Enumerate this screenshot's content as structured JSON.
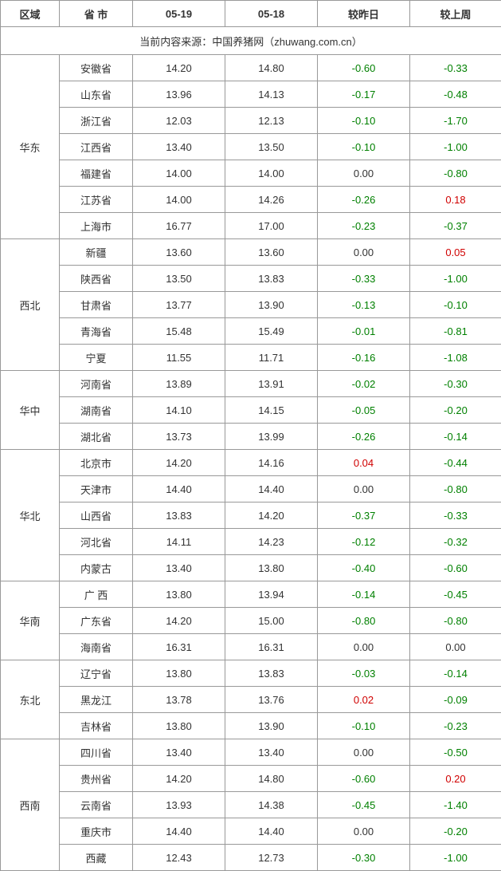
{
  "table": {
    "columns": [
      "区域",
      "省 市",
      "05-19",
      "05-18",
      "较昨日",
      "较上周"
    ],
    "source_line": "当前内容来源：中国养猪网（zhuwang.com.cn）",
    "colors": {
      "border": "#999999",
      "text": "#333333",
      "neg": "#008000",
      "pos": "#d00000",
      "bg": "#ffffff"
    },
    "groups": [
      {
        "region": "华东",
        "rows": [
          {
            "prov": "安徽省",
            "d1": "14.20",
            "d2": "14.80",
            "dd": "-0.60",
            "dw": "-0.33"
          },
          {
            "prov": "山东省",
            "d1": "13.96",
            "d2": "14.13",
            "dd": "-0.17",
            "dw": "-0.48"
          },
          {
            "prov": "浙江省",
            "d1": "12.03",
            "d2": "12.13",
            "dd": "-0.10",
            "dw": "-1.70"
          },
          {
            "prov": "江西省",
            "d1": "13.40",
            "d2": "13.50",
            "dd": "-0.10",
            "dw": "-1.00"
          },
          {
            "prov": "福建省",
            "d1": "14.00",
            "d2": "14.00",
            "dd": "0.00",
            "dw": "-0.80"
          },
          {
            "prov": "江苏省",
            "d1": "14.00",
            "d2": "14.26",
            "dd": "-0.26",
            "dw": "0.18"
          },
          {
            "prov": "上海市",
            "d1": "16.77",
            "d2": "17.00",
            "dd": "-0.23",
            "dw": "-0.37"
          }
        ]
      },
      {
        "region": "西北",
        "rows": [
          {
            "prov": "新疆",
            "d1": "13.60",
            "d2": "13.60",
            "dd": "0.00",
            "dw": "0.05"
          },
          {
            "prov": "陕西省",
            "d1": "13.50",
            "d2": "13.83",
            "dd": "-0.33",
            "dw": "-1.00"
          },
          {
            "prov": "甘肃省",
            "d1": "13.77",
            "d2": "13.90",
            "dd": "-0.13",
            "dw": "-0.10"
          },
          {
            "prov": "青海省",
            "d1": "15.48",
            "d2": "15.49",
            "dd": "-0.01",
            "dw": "-0.81"
          },
          {
            "prov": "宁夏",
            "d1": "11.55",
            "d2": "11.71",
            "dd": "-0.16",
            "dw": "-1.08"
          }
        ]
      },
      {
        "region": "华中",
        "rows": [
          {
            "prov": "河南省",
            "d1": "13.89",
            "d2": "13.91",
            "dd": "-0.02",
            "dw": "-0.30"
          },
          {
            "prov": "湖南省",
            "d1": "14.10",
            "d2": "14.15",
            "dd": "-0.05",
            "dw": "-0.20"
          },
          {
            "prov": "湖北省",
            "d1": "13.73",
            "d2": "13.99",
            "dd": "-0.26",
            "dw": "-0.14"
          }
        ]
      },
      {
        "region": "华北",
        "rows": [
          {
            "prov": "北京市",
            "d1": "14.20",
            "d2": "14.16",
            "dd": "0.04",
            "dw": "-0.44"
          },
          {
            "prov": "天津市",
            "d1": "14.40",
            "d2": "14.40",
            "dd": "0.00",
            "dw": "-0.80"
          },
          {
            "prov": "山西省",
            "d1": "13.83",
            "d2": "14.20",
            "dd": "-0.37",
            "dw": "-0.33"
          },
          {
            "prov": "河北省",
            "d1": "14.11",
            "d2": "14.23",
            "dd": "-0.12",
            "dw": "-0.32"
          },
          {
            "prov": "内蒙古",
            "d1": "13.40",
            "d2": "13.80",
            "dd": "-0.40",
            "dw": "-0.60"
          }
        ]
      },
      {
        "region": "华南",
        "rows": [
          {
            "prov": "广 西",
            "d1": "13.80",
            "d2": "13.94",
            "dd": "-0.14",
            "dw": "-0.45"
          },
          {
            "prov": "广东省",
            "d1": "14.20",
            "d2": "15.00",
            "dd": "-0.80",
            "dw": "-0.80"
          },
          {
            "prov": "海南省",
            "d1": "16.31",
            "d2": "16.31",
            "dd": "0.00",
            "dw": "0.00"
          }
        ]
      },
      {
        "region": "东北",
        "rows": [
          {
            "prov": "辽宁省",
            "d1": "13.80",
            "d2": "13.83",
            "dd": "-0.03",
            "dw": "-0.14"
          },
          {
            "prov": "黑龙江",
            "d1": "13.78",
            "d2": "13.76",
            "dd": "0.02",
            "dw": "-0.09"
          },
          {
            "prov": "吉林省",
            "d1": "13.80",
            "d2": "13.90",
            "dd": "-0.10",
            "dw": "-0.23"
          }
        ]
      },
      {
        "region": "西南",
        "rows": [
          {
            "prov": "四川省",
            "d1": "13.40",
            "d2": "13.40",
            "dd": "0.00",
            "dw": "-0.50"
          },
          {
            "prov": "贵州省",
            "d1": "14.20",
            "d2": "14.80",
            "dd": "-0.60",
            "dw": "0.20"
          },
          {
            "prov": "云南省",
            "d1": "13.93",
            "d2": "14.38",
            "dd": "-0.45",
            "dw": "-1.40"
          },
          {
            "prov": "重庆市",
            "d1": "14.40",
            "d2": "14.40",
            "dd": "0.00",
            "dw": "-0.20"
          },
          {
            "prov": "西藏",
            "d1": "12.43",
            "d2": "12.73",
            "dd": "-0.30",
            "dw": "-1.00"
          }
        ]
      }
    ]
  }
}
